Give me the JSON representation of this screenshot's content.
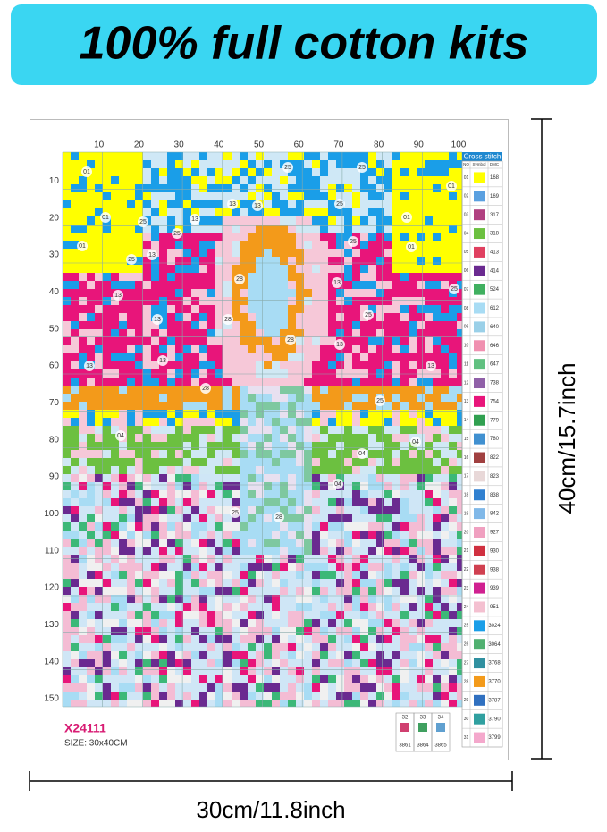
{
  "banner": {
    "text": "100% full cotton kits"
  },
  "pattern": {
    "top_axis": [
      "10",
      "20",
      "30",
      "40",
      {
        "text": "50",
        "color": "#c0272d"
      },
      "60",
      "70",
      "80",
      "90",
      {
        "text": "100",
        "color": "#c0272d"
      }
    ],
    "left_axis": [
      "10",
      "20",
      "30",
      "40",
      {
        "text": "50",
        "color": "#c0272d"
      },
      "60",
      "70",
      "80",
      "90",
      {
        "text": "100",
        "color": "#c0272d"
      },
      "110",
      "120",
      "130",
      "140",
      {
        "text": "150",
        "color": "#c0272d"
      }
    ],
    "labels": [
      "01",
      "01",
      "01",
      "01",
      "01",
      "01",
      "25",
      "25",
      "25",
      "25",
      "25",
      "25",
      "25",
      "25",
      "25",
      "25",
      "25",
      "13",
      "13",
      "13",
      "13",
      "13",
      "13",
      "13",
      "13",
      "13",
      "13",
      "13",
      "28",
      "28",
      "28",
      "28",
      "28",
      "04",
      "04",
      "04",
      "04"
    ],
    "code": "X24111",
    "size": "SIZE:  30x40CM"
  },
  "key": {
    "title": "Cross stitch",
    "columns": [
      "NO",
      "Symbol",
      "DMC"
    ],
    "rows": [
      {
        "no": "01",
        "dmc": "168",
        "color": "#ffff00"
      },
      {
        "no": "02",
        "dmc": "169",
        "color": "#5aa0e0"
      },
      {
        "no": "03",
        "dmc": "317",
        "color": "#b04080"
      },
      {
        "no": "04",
        "dmc": "318",
        "color": "#6cc040"
      },
      {
        "no": "05",
        "dmc": "413",
        "color": "#e04060"
      },
      {
        "no": "06",
        "dmc": "414",
        "color": "#6a2a90"
      },
      {
        "no": "07",
        "dmc": "524",
        "color": "#40b060"
      },
      {
        "no": "08",
        "dmc": "612",
        "color": "#a8dcf4"
      },
      {
        "no": "09",
        "dmc": "640",
        "color": "#9ad0e8"
      },
      {
        "no": "10",
        "dmc": "646",
        "color": "#f090b0"
      },
      {
        "no": "11",
        "dmc": "647",
        "color": "#60c080"
      },
      {
        "no": "12",
        "dmc": "738",
        "color": "#9060a8"
      },
      {
        "no": "13",
        "dmc": "754",
        "color": "#e8157a"
      },
      {
        "no": "14",
        "dmc": "779",
        "color": "#30a050"
      },
      {
        "no": "15",
        "dmc": "780",
        "color": "#4090d0"
      },
      {
        "no": "16",
        "dmc": "822",
        "color": "#a04040"
      },
      {
        "no": "17",
        "dmc": "823",
        "color": "#e8d8d8"
      },
      {
        "no": "18",
        "dmc": "838",
        "color": "#3080d0"
      },
      {
        "no": "19",
        "dmc": "842",
        "color": "#80b8e8"
      },
      {
        "no": "20",
        "dmc": "927",
        "color": "#f0a0c0"
      },
      {
        "no": "21",
        "dmc": "930",
        "color": "#d03040"
      },
      {
        "no": "22",
        "dmc": "938",
        "color": "#d04050"
      },
      {
        "no": "23",
        "dmc": "939",
        "color": "#d02090"
      },
      {
        "no": "24",
        "dmc": "951",
        "color": "#f4c0d0"
      },
      {
        "no": "25",
        "dmc": "3024",
        "color": "#1a9ee8"
      },
      {
        "no": "26",
        "dmc": "3064",
        "color": "#50b070"
      },
      {
        "no": "27",
        "dmc": "3768",
        "color": "#3090a0"
      },
      {
        "no": "28",
        "dmc": "3770",
        "color": "#f39a1a"
      },
      {
        "no": "29",
        "dmc": "3787",
        "color": "#3070c0"
      },
      {
        "no": "30",
        "dmc": "3790",
        "color": "#30a0a0"
      },
      {
        "no": "31",
        "dmc": "3799",
        "color": "#f4a8cc"
      }
    ],
    "extra": [
      {
        "no": "32",
        "dmc": "3861",
        "color": "#d04070"
      },
      {
        "no": "33",
        "dmc": "3864",
        "color": "#40a060"
      },
      {
        "no": "34",
        "dmc": "3865",
        "color": "#60a0d0"
      }
    ]
  },
  "dimensions": {
    "height": "40cm/15.7inch",
    "width": "30cm/11.8inch"
  }
}
